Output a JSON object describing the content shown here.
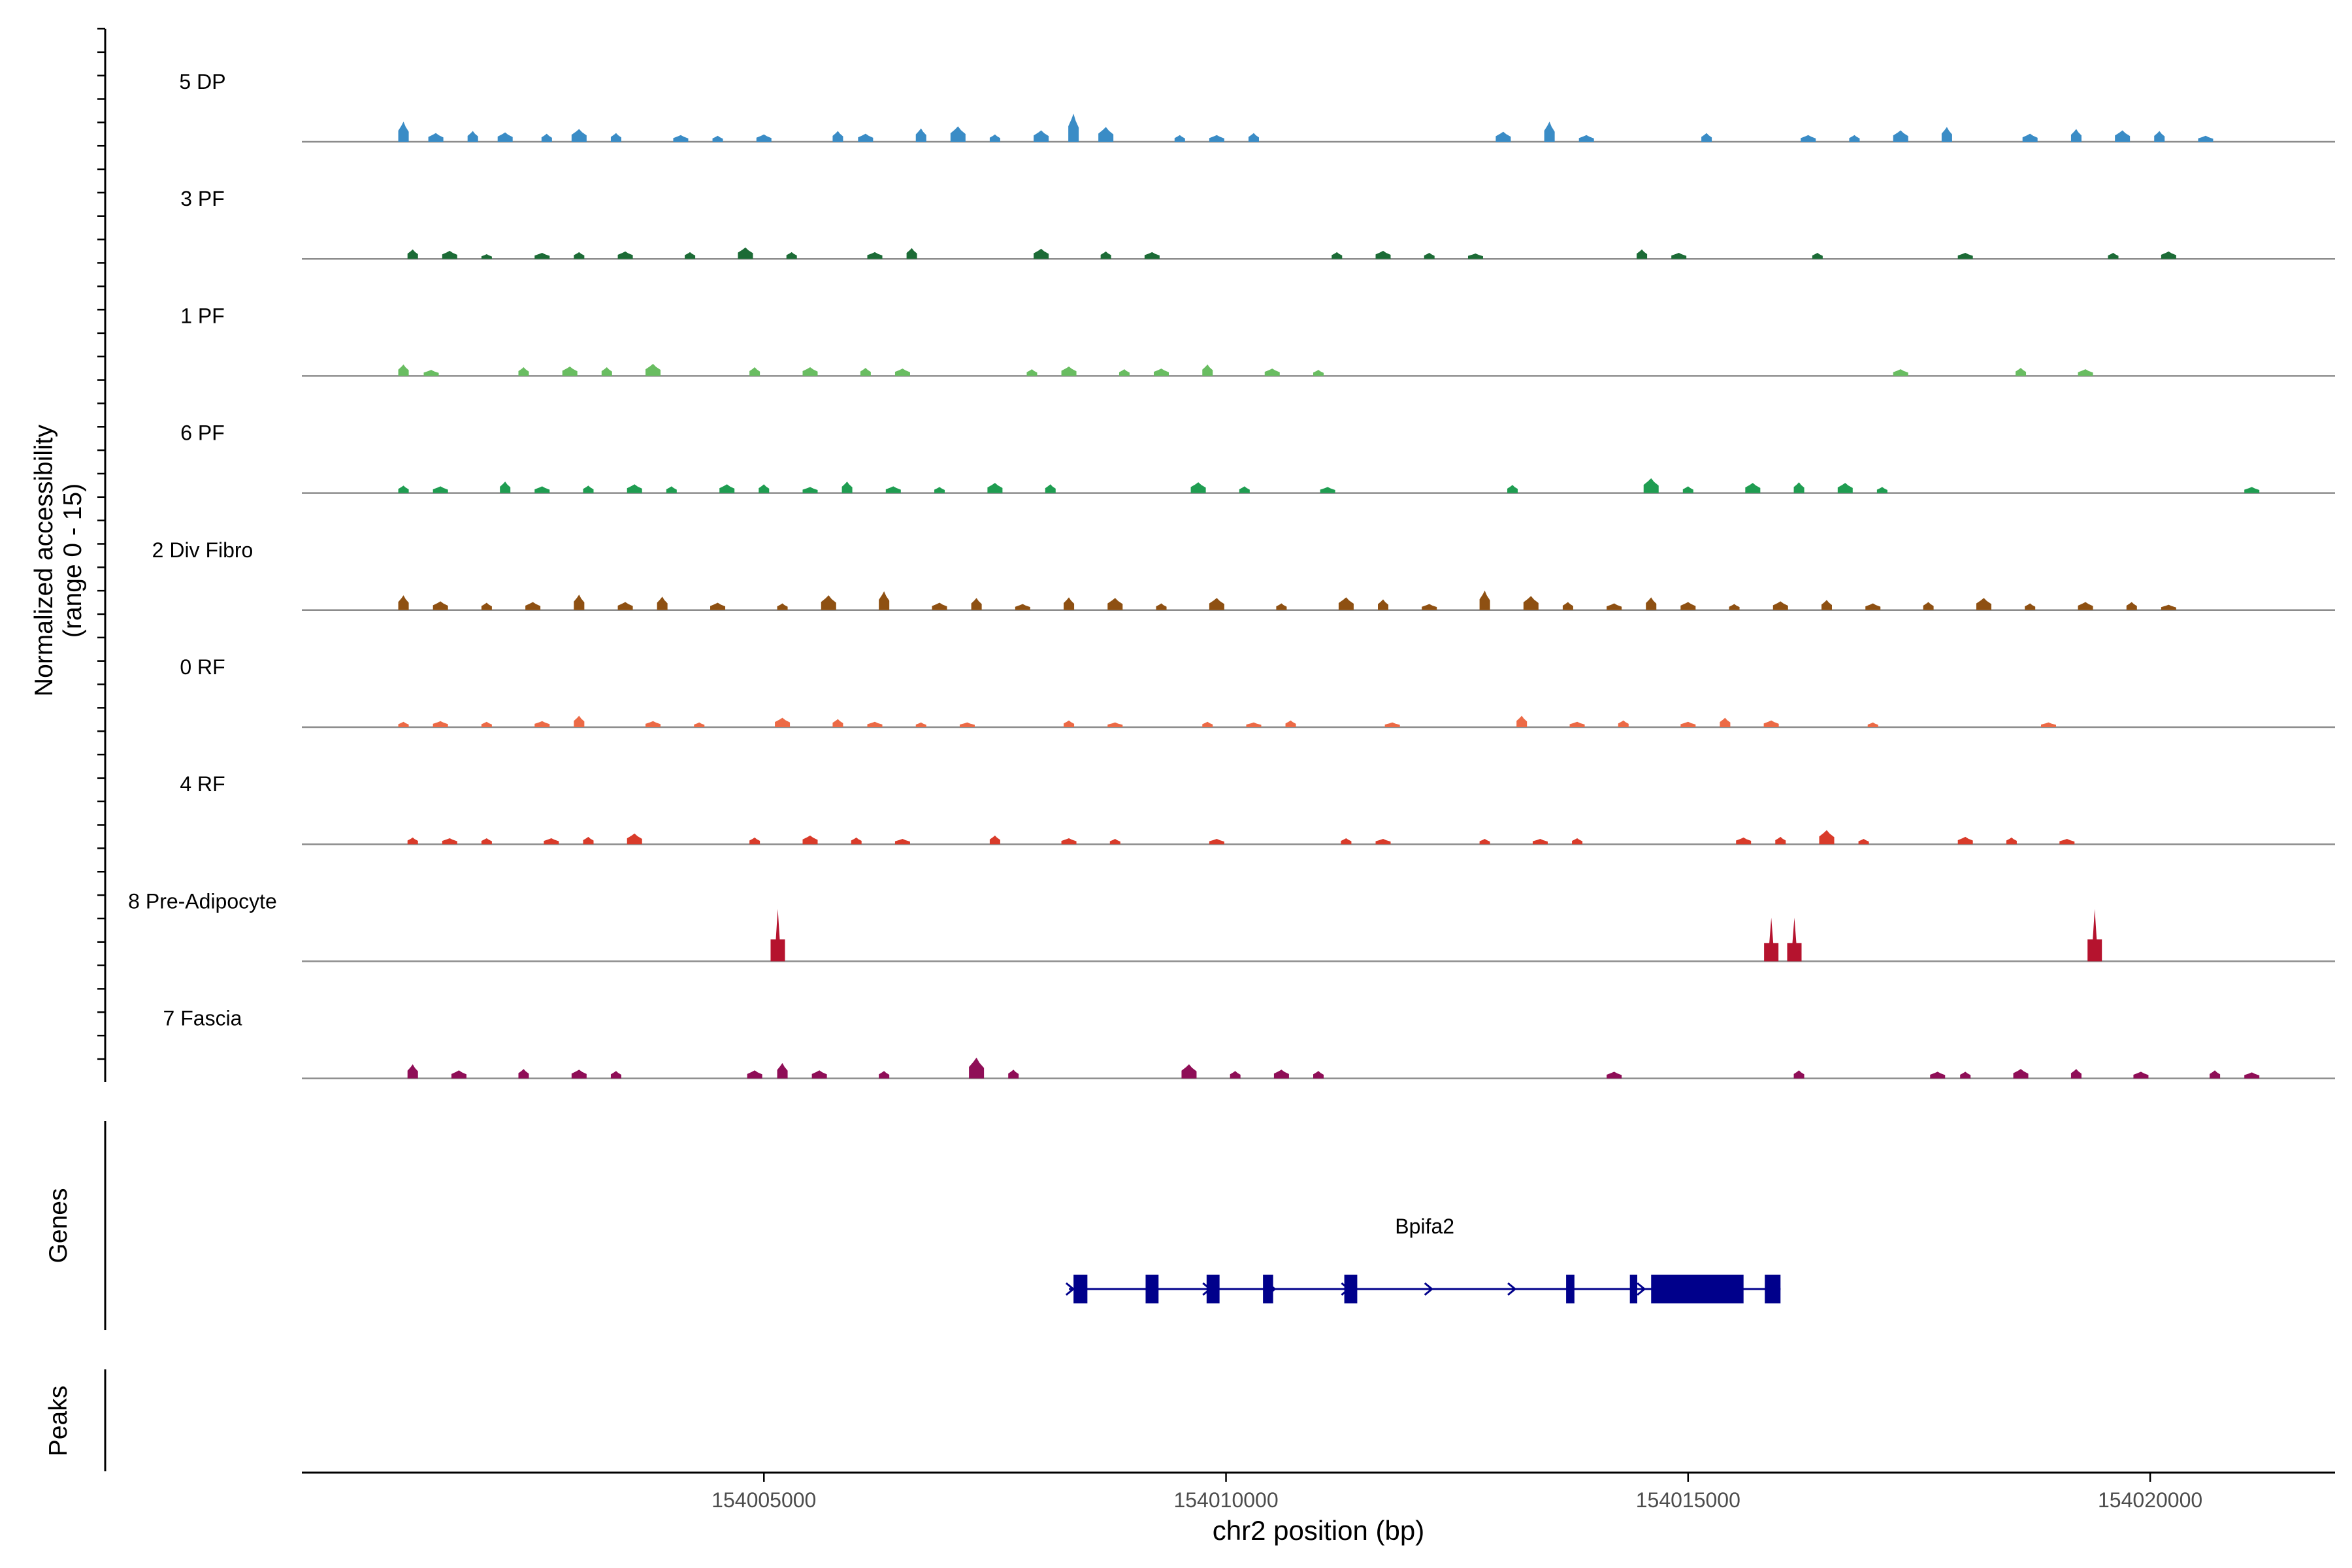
{
  "chart_data": {
    "type": "coverage_track",
    "ylabel_line1": "Normalized accessibility",
    "ylabel_line2": "(range 0 - 15)",
    "y_range": [
      0,
      15
    ],
    "xlabel": "chr2 position (bp)",
    "x_range": [
      154000000,
      154022000
    ],
    "x_ticks": [
      154005000,
      154010000,
      154015000,
      154020000
    ],
    "x_tick_labels": [
      "154005000",
      "154010000",
      "154015000",
      "154020000"
    ],
    "genes_label": "Genes",
    "peaks_label": "Peaks",
    "tracks": [
      {
        "name": "5 DP",
        "color": "#3A8CC6",
        "peaks": [
          [
            154001100,
            3.0
          ],
          [
            154001450,
            1.3
          ],
          [
            154001850,
            1.6
          ],
          [
            154002200,
            1.4
          ],
          [
            154002650,
            1.2
          ],
          [
            154003000,
            1.9
          ],
          [
            154003400,
            1.3
          ],
          [
            154004100,
            1.0
          ],
          [
            154004500,
            0.9
          ],
          [
            154005000,
            1.1
          ],
          [
            154005800,
            1.6
          ],
          [
            154006100,
            1.2
          ],
          [
            154006700,
            2.0
          ],
          [
            154007100,
            2.3
          ],
          [
            154007500,
            1.1
          ],
          [
            154008000,
            1.7
          ],
          [
            154008350,
            4.2
          ],
          [
            154008700,
            2.2
          ],
          [
            154009500,
            1.0
          ],
          [
            154009900,
            1.0
          ],
          [
            154010300,
            1.3
          ],
          [
            154013000,
            1.5
          ],
          [
            154013500,
            3.0
          ],
          [
            154013900,
            1.0
          ],
          [
            154015200,
            1.3
          ],
          [
            154016300,
            1.0
          ],
          [
            154016800,
            1.0
          ],
          [
            154017300,
            1.7
          ],
          [
            154017800,
            2.2
          ],
          [
            154018700,
            1.2
          ],
          [
            154019200,
            1.9
          ],
          [
            154019700,
            1.7
          ],
          [
            154020100,
            1.6
          ],
          [
            154020600,
            0.9
          ]
        ]
      },
      {
        "name": "3 PF",
        "color": "#1C6B36",
        "peaks": [
          [
            154001200,
            1.4
          ],
          [
            154001600,
            1.2
          ],
          [
            154002000,
            0.7
          ],
          [
            154002600,
            0.9
          ],
          [
            154003000,
            1.0
          ],
          [
            154003500,
            1.1
          ],
          [
            154004200,
            1.0
          ],
          [
            154004800,
            1.7
          ],
          [
            154005300,
            1.0
          ],
          [
            154006200,
            1.0
          ],
          [
            154006600,
            1.6
          ],
          [
            154008000,
            1.5
          ],
          [
            154008700,
            1.1
          ],
          [
            154009200,
            1.0
          ],
          [
            154011200,
            1.0
          ],
          [
            154011700,
            1.2
          ],
          [
            154012200,
            0.9
          ],
          [
            154012700,
            0.8
          ],
          [
            154014500,
            1.4
          ],
          [
            154014900,
            0.9
          ],
          [
            154016400,
            0.9
          ],
          [
            154018000,
            0.9
          ],
          [
            154019600,
            0.9
          ],
          [
            154020200,
            1.1
          ]
        ]
      },
      {
        "name": "1 PF",
        "color": "#69BD61",
        "peaks": [
          [
            154001100,
            1.7
          ],
          [
            154001400,
            0.9
          ],
          [
            154002400,
            1.3
          ],
          [
            154002900,
            1.4
          ],
          [
            154003300,
            1.3
          ],
          [
            154003800,
            1.8
          ],
          [
            154004900,
            1.3
          ],
          [
            154005500,
            1.3
          ],
          [
            154006100,
            1.2
          ],
          [
            154006500,
            1.1
          ],
          [
            154007900,
            1.0
          ],
          [
            154008300,
            1.4
          ],
          [
            154008900,
            1.0
          ],
          [
            154009300,
            1.1
          ],
          [
            154009800,
            1.7
          ],
          [
            154010500,
            1.1
          ],
          [
            154011000,
            0.9
          ],
          [
            154017300,
            1.0
          ],
          [
            154018600,
            1.2
          ],
          [
            154019300,
            1.0
          ]
        ]
      },
      {
        "name": "6 PF",
        "color": "#1F9D51",
        "peaks": [
          [
            154001100,
            1.1
          ],
          [
            154001500,
            1.0
          ],
          [
            154002200,
            1.7
          ],
          [
            154002600,
            1.0
          ],
          [
            154003100,
            1.1
          ],
          [
            154003600,
            1.3
          ],
          [
            154004000,
            1.0
          ],
          [
            154004600,
            1.3
          ],
          [
            154005000,
            1.3
          ],
          [
            154005500,
            0.9
          ],
          [
            154005900,
            1.7
          ],
          [
            154006400,
            1.0
          ],
          [
            154006900,
            0.9
          ],
          [
            154007500,
            1.5
          ],
          [
            154008100,
            1.3
          ],
          [
            154009700,
            1.6
          ],
          [
            154010200,
            1.0
          ],
          [
            154011100,
            0.9
          ],
          [
            154013100,
            1.2
          ],
          [
            154014600,
            2.2
          ],
          [
            154015000,
            1.0
          ],
          [
            154015700,
            1.5
          ],
          [
            154016200,
            1.6
          ],
          [
            154016700,
            1.5
          ],
          [
            154017100,
            0.9
          ],
          [
            154021100,
            0.9
          ]
        ]
      },
      {
        "name": "2 Div Fibro",
        "color": "#8E5012",
        "peaks": [
          [
            154001100,
            2.2
          ],
          [
            154001500,
            1.3
          ],
          [
            154002000,
            1.1
          ],
          [
            154002500,
            1.2
          ],
          [
            154003000,
            2.3
          ],
          [
            154003500,
            1.2
          ],
          [
            154003900,
            2.0
          ],
          [
            154004500,
            1.1
          ],
          [
            154005200,
            1.0
          ],
          [
            154005700,
            2.2
          ],
          [
            154006300,
            2.8
          ],
          [
            154006900,
            1.1
          ],
          [
            154007300,
            1.8
          ],
          [
            154007800,
            0.9
          ],
          [
            154008300,
            1.9
          ],
          [
            154008800,
            1.8
          ],
          [
            154009300,
            1.0
          ],
          [
            154009900,
            1.8
          ],
          [
            154010600,
            1.0
          ],
          [
            154011300,
            1.9
          ],
          [
            154011700,
            1.6
          ],
          [
            154012200,
            0.9
          ],
          [
            154012800,
            2.9
          ],
          [
            154013300,
            2.1
          ],
          [
            154013700,
            1.2
          ],
          [
            154014200,
            1.0
          ],
          [
            154014600,
            1.9
          ],
          [
            154015000,
            1.2
          ],
          [
            154015500,
            0.9
          ],
          [
            154016000,
            1.3
          ],
          [
            154016500,
            1.5
          ],
          [
            154017000,
            1.0
          ],
          [
            154017600,
            1.2
          ],
          [
            154018200,
            1.8
          ],
          [
            154018700,
            1.0
          ],
          [
            154019300,
            1.2
          ],
          [
            154019800,
            1.2
          ],
          [
            154020200,
            0.8
          ]
        ]
      },
      {
        "name": "0 RF",
        "color": "#EC6A46",
        "peaks": [
          [
            154001100,
            0.8
          ],
          [
            154001500,
            0.9
          ],
          [
            154002000,
            0.8
          ],
          [
            154002600,
            0.9
          ],
          [
            154003000,
            1.7
          ],
          [
            154003800,
            0.9
          ],
          [
            154004300,
            0.7
          ],
          [
            154005200,
            1.4
          ],
          [
            154005800,
            1.2
          ],
          [
            154006200,
            0.8
          ],
          [
            154006700,
            0.7
          ],
          [
            154007200,
            0.7
          ],
          [
            154008300,
            1.0
          ],
          [
            154008800,
            0.7
          ],
          [
            154009800,
            0.8
          ],
          [
            154010300,
            0.7
          ],
          [
            154010700,
            1.0
          ],
          [
            154011800,
            0.7
          ],
          [
            154013200,
            1.7
          ],
          [
            154013800,
            0.8
          ],
          [
            154014300,
            1.0
          ],
          [
            154015000,
            0.8
          ],
          [
            154015400,
            1.4
          ],
          [
            154015900,
            1.0
          ],
          [
            154017000,
            0.7
          ],
          [
            154018900,
            0.7
          ]
        ]
      },
      {
        "name": "4 RF",
        "color": "#D93B2A",
        "peaks": [
          [
            154001200,
            1.0
          ],
          [
            154001600,
            0.9
          ],
          [
            154002000,
            0.9
          ],
          [
            154002700,
            0.9
          ],
          [
            154003100,
            1.1
          ],
          [
            154003600,
            1.6
          ],
          [
            154004900,
            1.0
          ],
          [
            154005500,
            1.3
          ],
          [
            154006000,
            1.0
          ],
          [
            154006500,
            0.8
          ],
          [
            154007500,
            1.3
          ],
          [
            154008300,
            0.9
          ],
          [
            154008800,
            0.8
          ],
          [
            154009900,
            0.8
          ],
          [
            154011300,
            0.9
          ],
          [
            154011700,
            0.8
          ],
          [
            154012800,
            0.8
          ],
          [
            154013400,
            0.8
          ],
          [
            154013800,
            0.9
          ],
          [
            154015600,
            1.0
          ],
          [
            154016000,
            1.1
          ],
          [
            154016500,
            2.1
          ],
          [
            154016900,
            0.8
          ],
          [
            154018000,
            1.1
          ],
          [
            154018500,
            1.0
          ],
          [
            154019100,
            0.8
          ]
        ]
      },
      {
        "name": "8 Pre-Adipocyte",
        "color": "#B5132E",
        "peaks": [
          [
            154005150,
            7.8
          ],
          [
            154015900,
            6.5
          ],
          [
            154016150,
            6.5
          ],
          [
            154019400,
            7.8
          ]
        ]
      },
      {
        "name": "7 Fascia",
        "color": "#8F0E57",
        "peaks": [
          [
            154001200,
            2.1
          ],
          [
            154001700,
            1.2
          ],
          [
            154002400,
            1.4
          ],
          [
            154003000,
            1.3
          ],
          [
            154003400,
            1.1
          ],
          [
            154004900,
            1.2
          ],
          [
            154005200,
            2.3
          ],
          [
            154005600,
            1.2
          ],
          [
            154006300,
            1.1
          ],
          [
            154007300,
            3.1
          ],
          [
            154007700,
            1.3
          ],
          [
            154009600,
            2.1
          ],
          [
            154010100,
            1.1
          ],
          [
            154010600,
            1.3
          ],
          [
            154011000,
            1.1
          ],
          [
            154014200,
            1.0
          ],
          [
            154016200,
            1.2
          ],
          [
            154017700,
            1.0
          ],
          [
            154018000,
            1.0
          ],
          [
            154018600,
            1.4
          ],
          [
            154019200,
            1.4
          ],
          [
            154019900,
            1.0
          ],
          [
            154020700,
            1.2
          ],
          [
            154021100,
            0.9
          ]
        ]
      }
    ],
    "gene": {
      "name": "Bpifa2",
      "strand": "+",
      "start": 154008300,
      "end": 154016000,
      "exons": [
        [
          154008350,
          154008500
        ],
        [
          154009130,
          154009270
        ],
        [
          154009790,
          154009930
        ],
        [
          154010400,
          154010510
        ],
        [
          154011280,
          154011420
        ],
        [
          154013680,
          154013770
        ],
        [
          154014370,
          154014450
        ],
        [
          154014600,
          154015600
        ],
        [
          154015830,
          154016000
        ]
      ],
      "arrows": [
        154008320,
        154009800,
        154010500,
        154011300,
        154012200,
        154013100,
        154014500
      ]
    }
  }
}
